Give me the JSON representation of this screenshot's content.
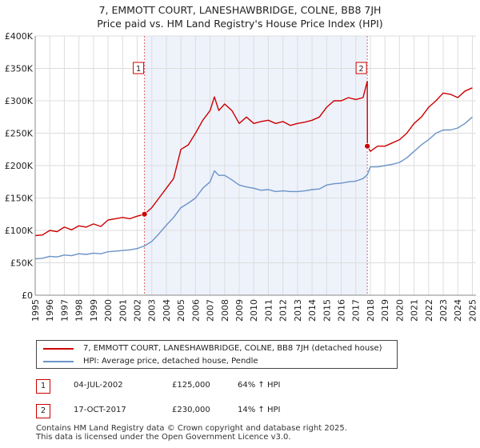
{
  "chart_data": {
    "type": "line",
    "title": "7, EMMOTT COURT, LANESHAWBRIDGE, COLNE, BB8 7JH",
    "subtitle": "Price paid vs. HM Land Registry's House Price Index (HPI)",
    "ylim": [
      0,
      400000
    ],
    "xlim": [
      1995,
      2025.25
    ],
    "y_ticks": [
      {
        "value": 0,
        "label": "£0"
      },
      {
        "value": 50000,
        "label": "£50K"
      },
      {
        "value": 100000,
        "label": "£100K"
      },
      {
        "value": 150000,
        "label": "£150K"
      },
      {
        "value": 200000,
        "label": "£200K"
      },
      {
        "value": 250000,
        "label": "£250K"
      },
      {
        "value": 300000,
        "label": "£300K"
      },
      {
        "value": 350000,
        "label": "£350K"
      },
      {
        "value": 400000,
        "label": "£400K"
      }
    ],
    "x_ticks": [
      "1995",
      "1996",
      "1997",
      "1998",
      "1999",
      "2000",
      "2001",
      "2002",
      "2003",
      "2004",
      "2005",
      "2006",
      "2007",
      "2008",
      "2009",
      "2010",
      "2011",
      "2012",
      "2013",
      "2014",
      "2015",
      "2016",
      "2017",
      "2018",
      "2019",
      "2020",
      "2021",
      "2022",
      "2023",
      "2024",
      "2025"
    ],
    "grid": true,
    "highlight_range": [
      2002.5,
      2017.8
    ],
    "series": [
      {
        "name": "7, EMMOTT COURT, LANESHAWBRIDGE, COLNE, BB8 7JH (detached house)",
        "color": "#cc0000",
        "x": [
          1995,
          1995.5,
          1996,
          1996.5,
          1997,
          1997.5,
          1998,
          1998.5,
          1999,
          1999.5,
          2000,
          2000.5,
          2001,
          2001.5,
          2002,
          2002.5,
          2003,
          2003.5,
          2004,
          2004.5,
          2005,
          2005.5,
          2006,
          2006.5,
          2007,
          2007.3,
          2007.6,
          2008,
          2008.5,
          2009,
          2009.5,
          2010,
          2010.5,
          2011,
          2011.5,
          2012,
          2012.5,
          2013,
          2013.5,
          2014,
          2014.5,
          2015,
          2015.5,
          2016,
          2016.5,
          2017,
          2017.5,
          2017.79,
          2017.8,
          2018,
          2018.5,
          2019,
          2019.5,
          2020,
          2020.5,
          2021,
          2021.5,
          2022,
          2022.5,
          2023,
          2023.5,
          2024,
          2024.5,
          2025
        ],
        "values": [
          92000,
          93000,
          100000,
          98000,
          105000,
          101000,
          107000,
          105000,
          110000,
          106000,
          116000,
          118000,
          120000,
          118000,
          122000,
          125000,
          135000,
          150000,
          165000,
          180000,
          225000,
          232000,
          250000,
          270000,
          285000,
          306000,
          285000,
          295000,
          285000,
          265000,
          275000,
          265000,
          268000,
          270000,
          265000,
          268000,
          262000,
          265000,
          267000,
          270000,
          275000,
          290000,
          300000,
          300000,
          305000,
          302000,
          305000,
          330000,
          230000,
          222000,
          230000,
          230000,
          235000,
          240000,
          250000,
          265000,
          275000,
          290000,
          300000,
          312000,
          310000,
          305000,
          315000,
          320000
        ]
      },
      {
        "name": "HPI: Average price, detached house, Pendle",
        "color": "#6a93c8",
        "x": [
          1995,
          1995.5,
          1996,
          1996.5,
          1997,
          1997.5,
          1998,
          1998.5,
          1999,
          1999.5,
          2000,
          2000.5,
          2001,
          2001.5,
          2002,
          2002.5,
          2003,
          2003.5,
          2004,
          2004.5,
          2005,
          2005.5,
          2006,
          2006.5,
          2007,
          2007.3,
          2007.6,
          2008,
          2008.5,
          2009,
          2009.5,
          2010,
          2010.5,
          2011,
          2011.5,
          2012,
          2012.5,
          2013,
          2013.5,
          2014,
          2014.5,
          2015,
          2015.5,
          2016,
          2016.5,
          2017,
          2017.5,
          2017.8,
          2018,
          2018.5,
          2019,
          2019.5,
          2020,
          2020.5,
          2021,
          2021.5,
          2022,
          2022.5,
          2023,
          2023.5,
          2024,
          2024.5,
          2025
        ],
        "values": [
          56000,
          57000,
          60000,
          59000,
          62000,
          61000,
          64000,
          63000,
          65000,
          64000,
          67000,
          68000,
          69000,
          70000,
          72000,
          76000,
          83000,
          95000,
          108000,
          120000,
          135000,
          142000,
          150000,
          165000,
          175000,
          192000,
          185000,
          185000,
          178000,
          170000,
          167000,
          165000,
          162000,
          163000,
          160000,
          161000,
          160000,
          160000,
          161000,
          163000,
          164000,
          170000,
          172000,
          173000,
          175000,
          176000,
          180000,
          186000,
          198000,
          198000,
          200000,
          202000,
          205000,
          212000,
          222000,
          232000,
          240000,
          250000,
          255000,
          255000,
          258000,
          265000,
          275000
        ]
      }
    ],
    "annotations": [
      {
        "label": "1",
        "x": 2002.5,
        "value": 125000,
        "date": "04-JUL-2002",
        "price": "£125,000",
        "hpi_change": "64% ↑ HPI"
      },
      {
        "label": "2",
        "x": 2017.79,
        "value": 230000,
        "date": "17-OCT-2017",
        "price": "£230,000",
        "hpi_change": "14% ↑ HPI"
      }
    ],
    "legend_position": "bottom"
  },
  "colors": {
    "property": "#cc0000",
    "hpi": "#6a93c8",
    "highlight": "#eef2fb",
    "grid": "#dddddd"
  },
  "footer": {
    "line1": "Contains HM Land Registry data © Crown copyright and database right 2025.",
    "line2": "This data is licensed under the Open Government Licence v3.0."
  }
}
